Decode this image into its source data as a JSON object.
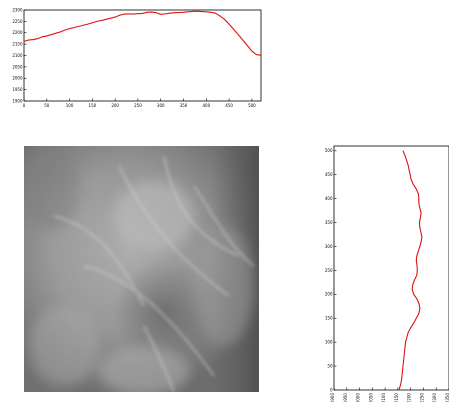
{
  "chart_data": [
    {
      "type": "line",
      "title": "",
      "xlabel": "",
      "ylabel": "",
      "xlim": [
        0,
        520
      ],
      "ylim": [
        1900,
        2300
      ],
      "x_ticks": [
        0,
        50,
        100,
        150,
        200,
        250,
        300,
        350,
        400,
        450,
        500
      ],
      "y_ticks": [
        1900,
        1950,
        2000,
        2050,
        2100,
        2150,
        2200,
        2250,
        2300
      ],
      "x_tick_labels": [
        "0",
        "50",
        "100",
        "150",
        "200",
        "250",
        "300",
        "350",
        "400",
        "450",
        "500"
      ],
      "y_tick_labels": [
        "1900",
        "1950",
        "2000",
        "2050",
        "2100",
        "2150",
        "2200",
        "2250",
        "2300"
      ],
      "line_color": "#e01010",
      "series": [
        {
          "x": [
            0,
            10,
            20,
            30,
            40,
            50,
            60,
            70,
            80,
            90,
            100,
            110,
            120,
            130,
            140,
            150,
            160,
            170,
            180,
            190,
            200,
            210,
            220,
            230,
            240,
            250,
            260,
            270,
            280,
            290,
            300,
            310,
            320,
            330,
            340,
            350,
            360,
            370,
            380,
            390,
            400,
            410,
            420,
            430,
            440,
            450,
            460,
            470,
            480,
            490,
            500,
            510,
            520
          ],
          "y": [
            2162,
            2168,
            2170,
            2174,
            2182,
            2186,
            2192,
            2198,
            2204,
            2212,
            2218,
            2223,
            2228,
            2233,
            2238,
            2244,
            2250,
            2254,
            2259,
            2264,
            2269,
            2277,
            2282,
            2283,
            2282,
            2284,
            2285,
            2290,
            2291,
            2288,
            2281,
            2283,
            2286,
            2288,
            2289,
            2290,
            2292,
            2294,
            2294,
            2293,
            2292,
            2290,
            2286,
            2274,
            2259,
            2238,
            2215,
            2192,
            2168,
            2144,
            2119,
            2104,
            2101
          ]
        }
      ]
    },
    {
      "type": "line",
      "title": "",
      "xlabel": "",
      "ylabel": "",
      "xlim": [
        1900,
        2350
      ],
      "ylim": [
        0,
        510
      ],
      "x_ticks": [
        1900,
        1950,
        2000,
        2050,
        2100,
        2150,
        2200,
        2250,
        2300,
        2350
      ],
      "y_ticks": [
        0,
        50,
        100,
        150,
        200,
        250,
        300,
        350,
        400,
        450,
        500
      ],
      "x_tick_labels": [
        "1900",
        "1950",
        "2000",
        "2050",
        "2100",
        "2150",
        "2200",
        "2250",
        "2300",
        "2350"
      ],
      "y_tick_labels": [
        "0",
        "50",
        "100",
        "150",
        "200",
        "250",
        "300",
        "350",
        "400",
        "450",
        "500"
      ],
      "line_color": "#e01010",
      "series": [
        {
          "x": [
            2154,
            2160,
            2164,
            2166,
            2168,
            2170,
            2172,
            2174,
            2176,
            2178,
            2180,
            2185,
            2190,
            2200,
            2212,
            2222,
            2232,
            2236,
            2233,
            2225,
            2212,
            2206,
            2208,
            2215,
            2224,
            2226,
            2225,
            2222,
            2224,
            2230,
            2236,
            2241,
            2244,
            2240,
            2236,
            2234,
            2238,
            2241,
            2236,
            2232,
            2232,
            2230,
            2222,
            2210,
            2202,
            2198,
            2194,
            2190,
            2184,
            2178,
            2170
          ],
          "y": [
            0,
            10,
            20,
            30,
            40,
            50,
            60,
            70,
            80,
            90,
            100,
            110,
            120,
            130,
            140,
            150,
            160,
            170,
            180,
            190,
            200,
            210,
            220,
            230,
            240,
            250,
            260,
            270,
            280,
            290,
            300,
            310,
            320,
            330,
            340,
            350,
            360,
            370,
            380,
            390,
            400,
            410,
            420,
            430,
            440,
            450,
            460,
            470,
            480,
            490,
            500
          ]
        }
      ]
    }
  ]
}
